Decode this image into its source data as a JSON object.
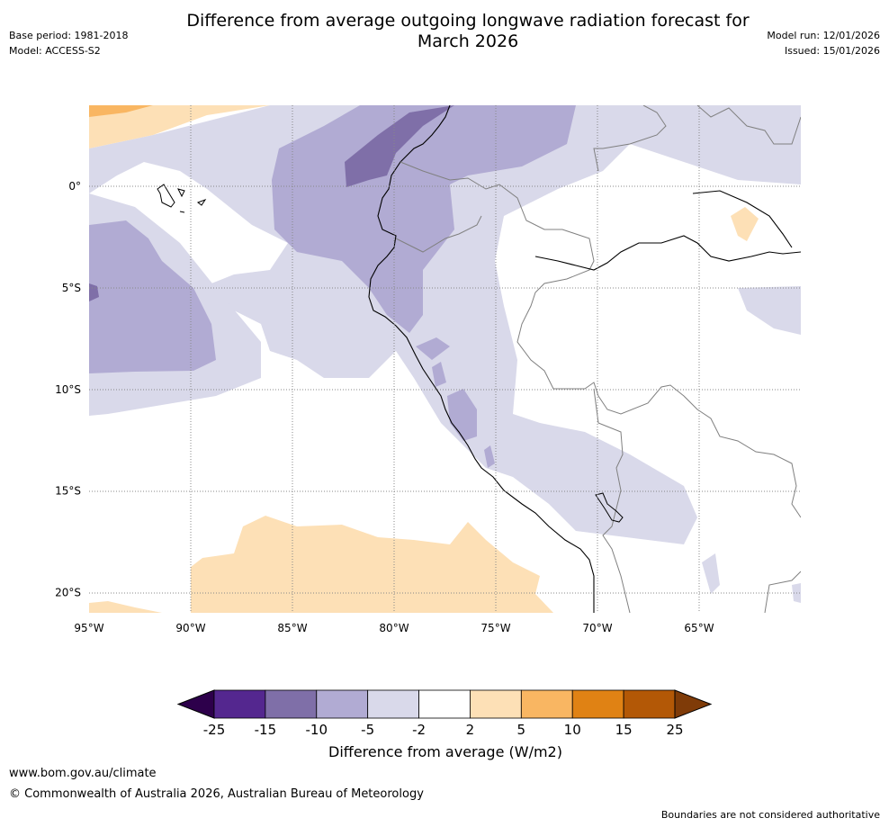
{
  "header": {
    "title_line1": "Difference from average outgoing longwave radiation forecast for",
    "title_line2": "March 2026",
    "base_period": "Base period: 1981-2018",
    "model": "Model: ACCESS-S2",
    "model_run": "Model run: 12/01/2026",
    "issued": "Issued: 15/01/2026"
  },
  "map": {
    "lat_labels": [
      "0°",
      "5°S",
      "10°S",
      "15°S",
      "20°S"
    ],
    "lat_values": [
      0,
      -5,
      -10,
      -15,
      -20
    ],
    "lon_labels": [
      "95°W",
      "90°W",
      "85°W",
      "80°W",
      "75°W",
      "70°W",
      "65°W"
    ],
    "lon_values": [
      -95,
      -90,
      -85,
      -80,
      -75,
      -70,
      -65
    ]
  },
  "colorbar": {
    "label": "Difference from average (W/m2)",
    "ticks": [
      "-25",
      "-15",
      "-10",
      "-5",
      "-2",
      "2",
      "5",
      "10",
      "15",
      "25"
    ],
    "colors": [
      "#54278f",
      "#7f6fa8",
      "#b1abd3",
      "#d9d9ea",
      "#ffffff",
      "#fde0b6",
      "#f9b662",
      "#e08214",
      "#b35806"
    ],
    "under_color": "#2d004b",
    "over_color": "#7f3b08"
  },
  "footer": {
    "url": "www.bom.gov.au/climate",
    "copyright": "© Commonwealth of Australia 2026, Australian Bureau of Meteorology",
    "disclaimer": "Boundaries are not considered authoritative"
  }
}
